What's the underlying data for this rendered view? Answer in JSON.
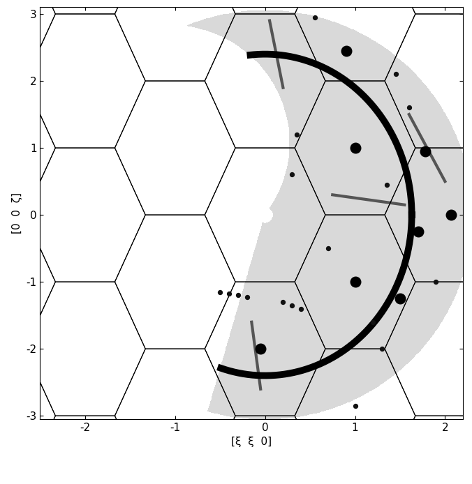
{
  "chart_data": {
    "type": "map",
    "xlabel": "[ξ  ξ  0]",
    "ylabel": "[0  0  ζ]",
    "xlim": [
      -2.5,
      2.2
    ],
    "ylim": [
      -3.05,
      3.1
    ],
    "xticks": [
      -2,
      -1,
      0,
      1,
      2
    ],
    "yticks": [
      -3,
      -2,
      -1,
      0,
      1,
      2,
      3
    ],
    "zone_centers": {
      "x": [
        -3,
        -3,
        -3,
        -3,
        -2,
        -2,
        -2,
        -2,
        -2,
        -1,
        -1,
        -1,
        -1,
        0,
        0,
        0,
        0,
        0,
        1,
        1,
        1,
        1,
        2,
        2,
        2,
        2,
        2,
        3,
        3,
        3,
        3
      ],
      "y": [
        -3,
        -1,
        1,
        3,
        -4,
        -2,
        0,
        2,
        4,
        -3,
        -1,
        1,
        3,
        -4,
        -2,
        0,
        2,
        4,
        -3,
        -1,
        1,
        3,
        -4,
        -2,
        0,
        2,
        4,
        -3,
        -1,
        1,
        3
      ]
    },
    "zone_shape": {
      "x": [
        0.33,
        0.67,
        0.33,
        -0.33,
        -0.67,
        -0.33
      ],
      "y": [
        1,
        0,
        -1,
        -1,
        0,
        1
      ]
    },
    "coverage": {
      "rx": 2.3,
      "ry": 3.05,
      "angles": [
        -106,
        115
      ],
      "cutout": {
        "u": -0.458,
        "v": 0.353,
        "r": 0.578
      },
      "hole": 0.04,
      "color": "#d9d9d9"
    },
    "ring": {
      "rx": 1.63,
      "ry": 2.4,
      "color": "#000000"
    },
    "spots": {
      "x": [
        1.0,
        1.0,
        -0.05,
        2.07,
        1.78,
        1.7,
        1.5,
        0.9
      ],
      "y": [
        1.0,
        -1.0,
        -2.0,
        0.0,
        0.95,
        -0.25,
        -1.25,
        2.45
      ],
      "marker": "o",
      "color": "#000000"
    },
    "small_spots": {
      "x": [
        -0.5,
        -0.4,
        -0.3,
        -0.2,
        0.2,
        0.3,
        0.4,
        0.35,
        0.3,
        1.45,
        1.6,
        1.3,
        1.0,
        1.9,
        1.35,
        0.55,
        1.2,
        0.7
      ],
      "y": [
        -1.15,
        -1.18,
        -1.2,
        -1.23,
        -1.3,
        -1.35,
        -1.4,
        1.2,
        0.6,
        2.1,
        1.6,
        -2.0,
        -2.85,
        -1.0,
        0.45,
        2.95,
        -1.6,
        -0.5
      ],
      "marker": "o",
      "color": "#111111"
    },
    "streaks": [
      {
        "x": [
          0.75,
          1.55
        ],
        "y": [
          0.3,
          0.15
        ]
      },
      {
        "x": [
          1.6,
          2.0
        ],
        "y": [
          1.5,
          0.5
        ]
      },
      {
        "x": [
          -0.15,
          -0.05
        ],
        "y": [
          -1.6,
          -2.6
        ]
      },
      {
        "x": [
          0.05,
          0.2
        ],
        "y": [
          2.9,
          1.9
        ]
      }
    ]
  }
}
